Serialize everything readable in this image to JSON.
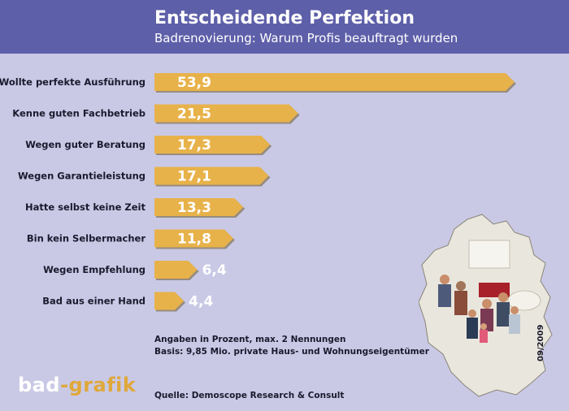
{
  "header": {
    "title": "Entscheidende Perfektion",
    "subtitle": "Badrenovierung: Warum Profis beauftragt wurden"
  },
  "chart_data": {
    "type": "bar",
    "orientation": "horizontal",
    "title": "Entscheidende Perfektion",
    "subtitle": "Badrenovierung: Warum Profis beauftragt wurden",
    "categories": [
      "Wollte perfekte Ausführung",
      "Kenne guten Fachbetrieb",
      "Wegen guter Beratung",
      "Wegen Garantieleistung",
      "Hatte selbst keine Zeit",
      "Bin kein Selbermacher",
      "Wegen Empfehlung",
      "Bad aus einer Hand"
    ],
    "values": [
      53.9,
      21.5,
      17.3,
      17.1,
      13.3,
      11.8,
      6.4,
      4.4
    ],
    "value_labels": [
      "53,9",
      "21,5",
      "17,3",
      "17,1",
      "13,3",
      "11,8",
      "6,4",
      "4,4"
    ],
    "xlim": [
      0,
      55
    ],
    "grid": false,
    "bar_color": "#e8b24a"
  },
  "notes": {
    "line1": "Angaben in Prozent, max. 2 Nennungen",
    "line2": "Basis: 9,85 Mio. private Haus- und Wohnungseigentümer",
    "source": "Quelle: Demoscope Research & Consult",
    "date": "09/2009"
  },
  "logo": {
    "part1": "bad",
    "part2": "-grafik"
  },
  "colors": {
    "background": "#c9c9e6",
    "header": "#5e5fa9",
    "bar": "#e8b24a",
    "bar_shadow": "#6b5a2a"
  }
}
